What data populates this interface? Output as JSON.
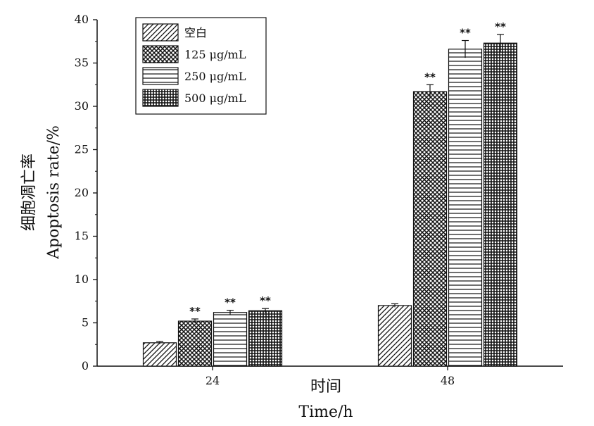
{
  "chart_data": {
    "type": "bar",
    "categories": [
      "24",
      "48"
    ],
    "series": [
      {
        "name": "空白",
        "values": [
          2.7,
          7.0
        ],
        "errors": [
          0.15,
          0.2
        ],
        "sig": [
          "",
          ""
        ],
        "pattern": "diagonal"
      },
      {
        "name": "125 μg/mL",
        "values": [
          5.2,
          31.7
        ],
        "errors": [
          0.25,
          0.8
        ],
        "sig": [
          "**",
          "**"
        ],
        "pattern": "crosshatch"
      },
      {
        "name": "250 μg/mL",
        "values": [
          6.2,
          36.6
        ],
        "errors": [
          0.25,
          1.0
        ],
        "sig": [
          "**",
          "**"
        ],
        "pattern": "horizontal"
      },
      {
        "name": "500 μg/mL",
        "values": [
          6.4,
          37.3
        ],
        "errors": [
          0.25,
          1.0
        ],
        "sig": [
          "**",
          "**"
        ],
        "pattern": "grid"
      }
    ],
    "ylim": [
      0,
      40
    ],
    "yticks": [
      0,
      5,
      10,
      15,
      20,
      25,
      30,
      35,
      40
    ],
    "ylabel_cn": "细胞凋亡率",
    "ylabel_en": "Apoptosis rate/%",
    "xlabel_cn": "时间",
    "xlabel_en": "Time/h",
    "legend_position": "top-left",
    "grid": false
  }
}
